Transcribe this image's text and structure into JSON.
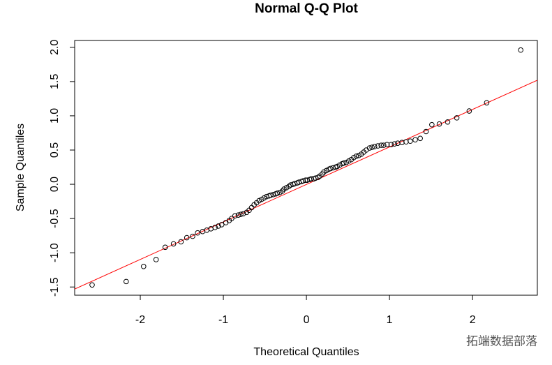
{
  "chart_data": {
    "type": "scatter",
    "title": "Normal Q-Q Plot",
    "x_label": "Theoretical Quantiles",
    "y_label": "Sample Quantiles",
    "x": [
      -2.58,
      -2.17,
      -1.96,
      -1.81,
      -1.7,
      -1.6,
      -1.51,
      -1.44,
      -1.37,
      -1.31,
      -1.25,
      -1.2,
      -1.15,
      -1.1,
      -1.06,
      -1.02,
      -0.97,
      -0.93,
      -0.9,
      -0.86,
      -0.82,
      -0.79,
      -0.76,
      -0.72,
      -0.69,
      -0.66,
      -0.63,
      -0.6,
      -0.57,
      -0.54,
      -0.51,
      -0.48,
      -0.45,
      -0.43,
      -0.4,
      -0.37,
      -0.35,
      -0.32,
      -0.29,
      -0.27,
      -0.24,
      -0.21,
      -0.19,
      -0.16,
      -0.14,
      -0.11,
      -0.09,
      -0.06,
      -0.04,
      -0.01,
      0.01,
      0.04,
      0.06,
      0.09,
      0.11,
      0.14,
      0.16,
      0.19,
      0.21,
      0.24,
      0.27,
      0.29,
      0.32,
      0.35,
      0.37,
      0.4,
      0.43,
      0.45,
      0.48,
      0.51,
      0.54,
      0.57,
      0.6,
      0.63,
      0.66,
      0.69,
      0.72,
      0.76,
      0.79,
      0.82,
      0.86,
      0.9,
      0.93,
      0.97,
      1.02,
      1.06,
      1.1,
      1.15,
      1.2,
      1.25,
      1.31,
      1.37,
      1.44,
      1.51,
      1.6,
      1.7,
      1.81,
      1.96,
      2.17,
      2.58
    ],
    "series": [
      {
        "color": "#000000",
        "values": [
          -1.47,
          -1.42,
          -1.2,
          -1.1,
          -0.92,
          -0.87,
          -0.84,
          -0.78,
          -0.76,
          -0.71,
          -0.69,
          -0.67,
          -0.65,
          -0.63,
          -0.61,
          -0.59,
          -0.56,
          -0.53,
          -0.5,
          -0.46,
          -0.45,
          -0.44,
          -0.43,
          -0.41,
          -0.38,
          -0.34,
          -0.3,
          -0.27,
          -0.24,
          -0.22,
          -0.2,
          -0.18,
          -0.17,
          -0.16,
          -0.15,
          -0.14,
          -0.13,
          -0.12,
          -0.1,
          -0.07,
          -0.05,
          -0.03,
          -0.01,
          0.0,
          0.01,
          0.02,
          0.03,
          0.04,
          0.05,
          0.06,
          0.06,
          0.07,
          0.08,
          0.08,
          0.09,
          0.1,
          0.12,
          0.15,
          0.18,
          0.2,
          0.22,
          0.23,
          0.24,
          0.25,
          0.26,
          0.28,
          0.3,
          0.31,
          0.32,
          0.34,
          0.36,
          0.39,
          0.41,
          0.42,
          0.44,
          0.47,
          0.5,
          0.53,
          0.54,
          0.55,
          0.56,
          0.57,
          0.57,
          0.58,
          0.58,
          0.59,
          0.6,
          0.61,
          0.62,
          0.63,
          0.65,
          0.67,
          0.77,
          0.87,
          0.88,
          0.91,
          0.97,
          1.07,
          1.19,
          1.96
        ]
      }
    ],
    "reference_line": {
      "color": "#ff0000",
      "x": [
        -2.79,
        2.78
      ],
      "values": [
        -1.53,
        1.52
      ]
    },
    "xlim": [
      -2.79,
      2.78
    ],
    "ylim": [
      -1.62,
      2.1
    ],
    "xticks": [
      -2,
      -1,
      0,
      1,
      2
    ],
    "yticks": [
      -1.5,
      {
        "value": -1,
        "label": "-1.0"
      },
      -0.5,
      {
        "value": 0,
        "label": "0.0"
      },
      0.5,
      {
        "value": 1,
        "label": "1.0"
      },
      1.5,
      {
        "value": 2,
        "label": "2.0"
      }
    ],
    "grid": false,
    "watermark": "拓端数据部落"
  }
}
